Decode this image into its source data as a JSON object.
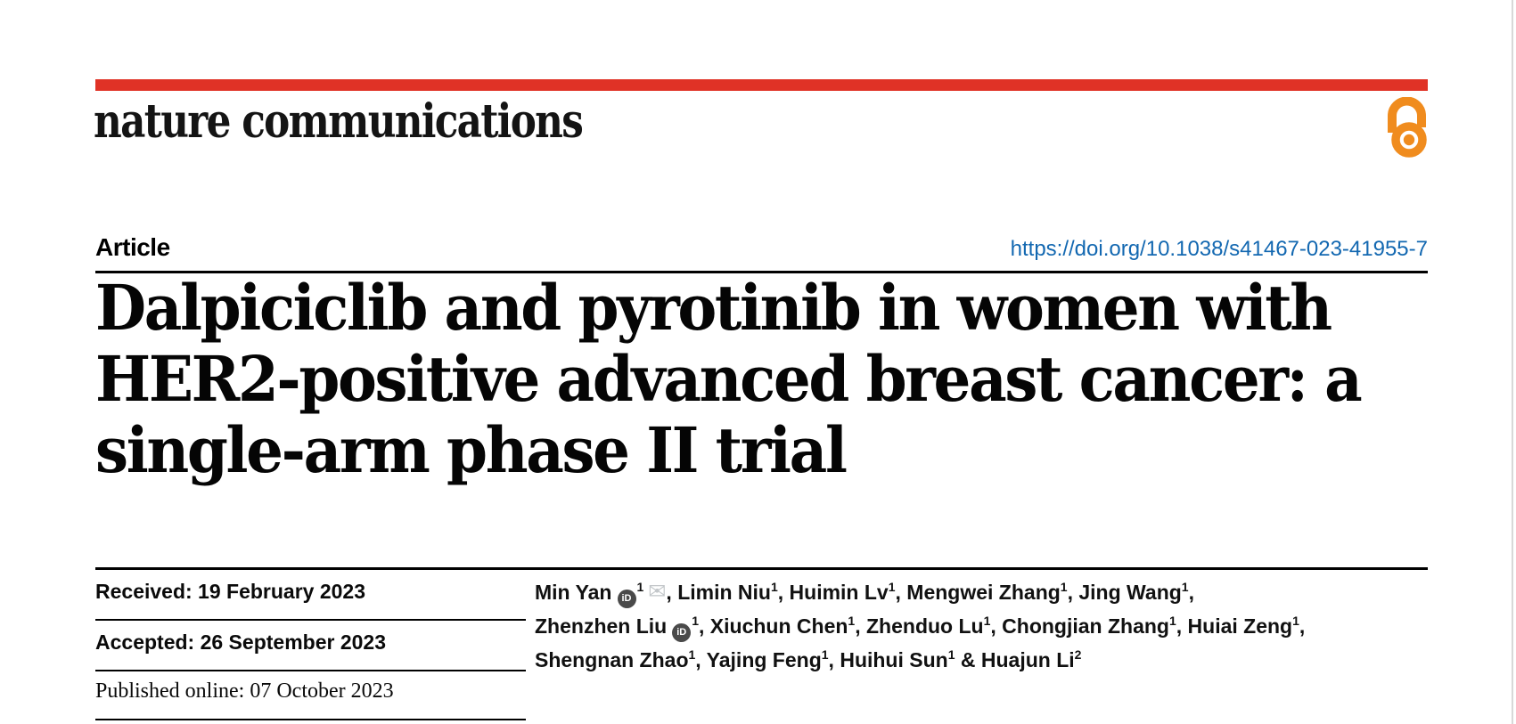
{
  "colors": {
    "masthead_bar": "#e03226",
    "doi_link": "#1368b1",
    "open_access_orange": "#f08c1e",
    "orcid_badge": "#4a4a4a",
    "email_icon_gray": "#c3c7ca"
  },
  "masthead": {
    "brand": "nature communications"
  },
  "article_header": {
    "type_label": "Article",
    "doi_link": "https://doi.org/10.1038/s41467-023-41955-7"
  },
  "title": {
    "lines": [
      "Dalpiciclib and pyrotinib in women with",
      "HER2-positive advanced breast cancer: a",
      "single-arm phase II trial"
    ]
  },
  "dates": {
    "received": "Received: 19 February 2023",
    "accepted": "Accepted: 26 September 2023",
    "published": "Published online: 07 October 2023"
  },
  "authors": {
    "icons": {
      "orcid": "iD",
      "email": "✉"
    },
    "lines": [
      [
        {
          "name": "Min Yan",
          "orcid": true,
          "sup": "1",
          "email": true,
          "trail": ", "
        },
        {
          "name": "Limin Niu",
          "sup": "1",
          "trail": ", "
        },
        {
          "name": "Huimin Lv",
          "sup": "1",
          "trail": ", "
        },
        {
          "name": "Mengwei Zhang",
          "sup": "1",
          "trail": ", "
        },
        {
          "name": "Jing Wang",
          "sup": "1",
          "trail": ","
        }
      ],
      [
        {
          "name": "Zhenzhen Liu",
          "orcid": true,
          "sup": "1",
          "trail": ", "
        },
        {
          "name": "Xiuchun Chen",
          "sup": "1",
          "trail": ", "
        },
        {
          "name": "Zhenduo Lu",
          "sup": "1",
          "trail": ", "
        },
        {
          "name": "Chongjian Zhang",
          "sup": "1",
          "trail": ", "
        },
        {
          "name": "Huiai Zeng",
          "sup": "1",
          "trail": ","
        }
      ],
      [
        {
          "name": "Shengnan Zhao",
          "sup": "1",
          "trail": ", "
        },
        {
          "name": "Yajing Feng",
          "sup": "1",
          "trail": ", "
        },
        {
          "name": "Huihui Sun",
          "sup": "1",
          "trail": " "
        },
        {
          "name": "& Huajun Li",
          "sup": "2",
          "trail": ""
        }
      ]
    ]
  }
}
